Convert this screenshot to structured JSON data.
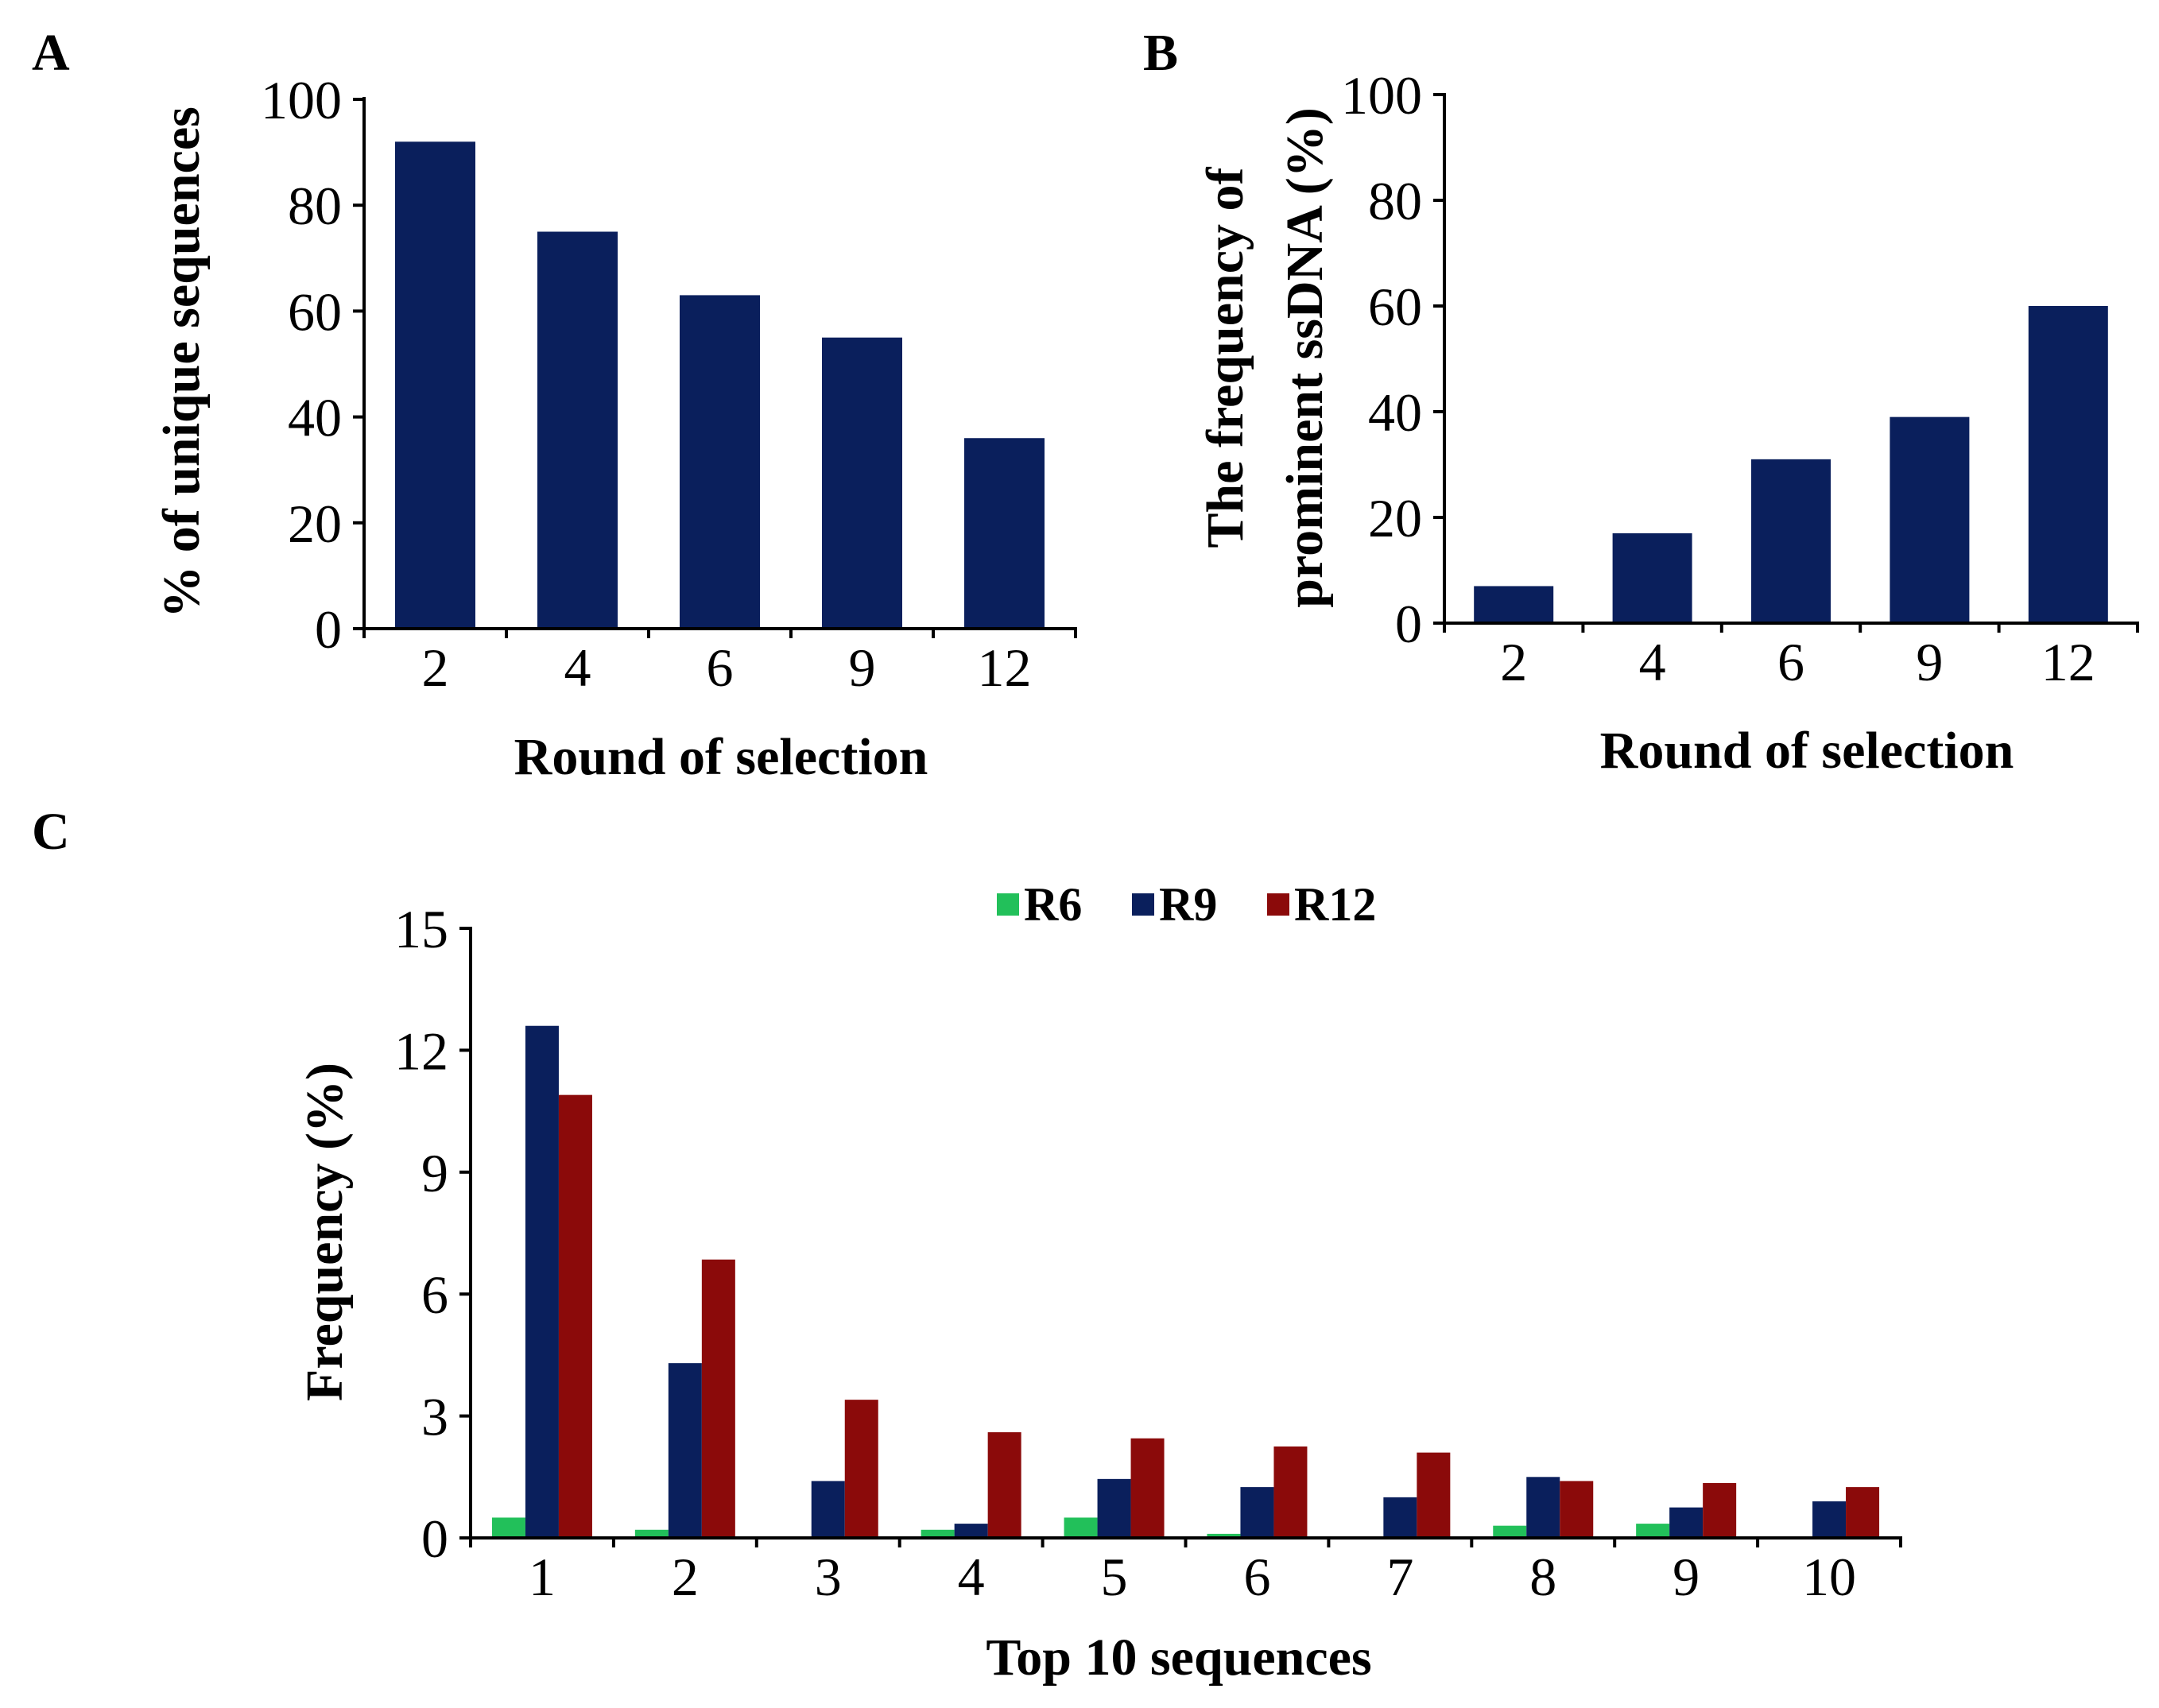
{
  "colors": {
    "navy": "#0a1f5c",
    "green": "#22c05a",
    "red": "#8b0a0a"
  },
  "chart_data": [
    {
      "panel": "A",
      "type": "bar",
      "categories": [
        "2",
        "4",
        "6",
        "9",
        "12"
      ],
      "values": [
        92,
        75,
        63,
        55,
        36
      ],
      "xlabel": "Round of selection",
      "ylabel": "% of unique sequences",
      "ylim": [
        0,
        100
      ],
      "yticks": [
        "0",
        "20",
        "40",
        "60",
        "80",
        "100"
      ],
      "ytick_values": [
        0,
        20,
        40,
        60,
        80,
        100
      ]
    },
    {
      "panel": "B",
      "type": "bar",
      "categories": [
        "2",
        "4",
        "6",
        "9",
        "12"
      ],
      "values": [
        7,
        17,
        31,
        39,
        60
      ],
      "xlabel": "Round of selection",
      "ylabel_line1": "The frequency of",
      "ylabel_line2": "prominent ssDNA (%)",
      "ylim": [
        0,
        100
      ],
      "yticks": [
        "0",
        "20",
        "40",
        "60",
        "80",
        "100"
      ],
      "ytick_values": [
        0,
        20,
        40,
        60,
        80,
        100
      ]
    },
    {
      "panel": "C",
      "type": "bar",
      "categories": [
        "1",
        "2",
        "3",
        "4",
        "5",
        "6",
        "7",
        "8",
        "9",
        "10"
      ],
      "series": [
        {
          "name": "R6",
          "color": "#22c05a",
          "values": [
            0.5,
            0.2,
            0.0,
            0.2,
            0.5,
            0.1,
            0.0,
            0.3,
            0.35,
            0.0
          ]
        },
        {
          "name": "R9",
          "color": "#0a1f5c",
          "values": [
            12.6,
            4.3,
            1.4,
            0.35,
            1.45,
            1.25,
            1.0,
            1.5,
            0.75,
            0.9
          ]
        },
        {
          "name": "R12",
          "color": "#8b0a0a",
          "values": [
            10.9,
            6.85,
            3.4,
            2.6,
            2.45,
            2.25,
            2.1,
            1.4,
            1.35,
            1.25
          ]
        }
      ],
      "xlabel": "Top 10 sequences",
      "ylabel": "Frequency (%)",
      "ylim": [
        0,
        15
      ],
      "yticks": [
        "0",
        "3",
        "6",
        "9",
        "12",
        "15"
      ],
      "ytick_values": [
        0,
        3,
        6,
        9,
        12,
        15
      ]
    }
  ]
}
